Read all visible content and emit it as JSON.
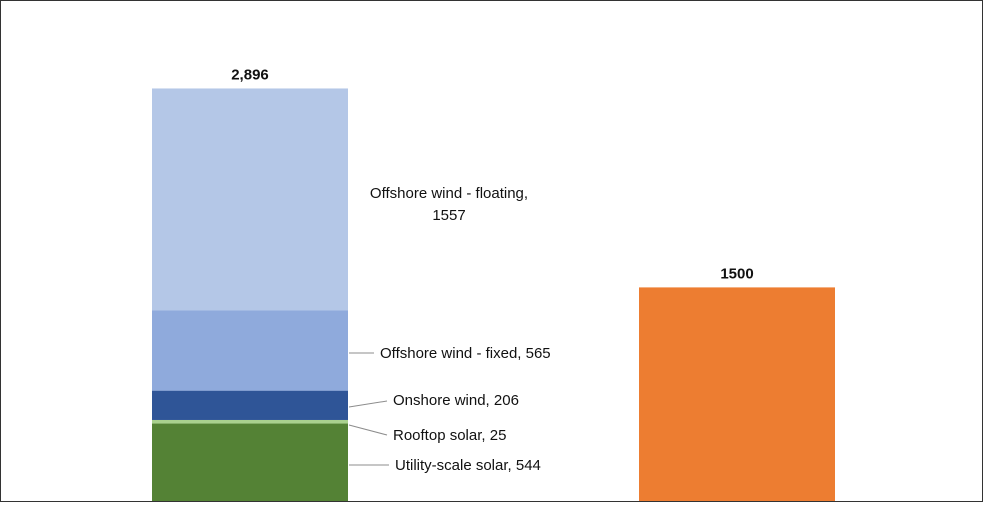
{
  "chart_data": {
    "type": "bar",
    "stacked": true,
    "categories": [
      "",
      ""
    ],
    "bars": [
      {
        "total_label": "2,896",
        "segments": [
          {
            "name": "Utility-scale solar",
            "value": 544,
            "label": "Utility-scale solar, 544",
            "color": "#548235"
          },
          {
            "name": "Rooftop solar",
            "value": 25,
            "label": "Rooftop solar, 25",
            "color": "#a9d18e"
          },
          {
            "name": "Onshore wind",
            "value": 206,
            "label": "Onshore wind, 206",
            "color": "#2f5597"
          },
          {
            "name": "Offshore wind - fixed",
            "value": 565,
            "label": "Offshore wind - fixed, 565",
            "color": "#8faadc"
          },
          {
            "name": "Offshore wind - floating",
            "value": 1557,
            "label_lines": [
              "Offshore wind - floating,",
              "1557"
            ],
            "color": "#b4c7e7"
          }
        ]
      },
      {
        "total_label": "1500",
        "segments": [
          {
            "value": 1500,
            "color": "#ed7d31"
          }
        ]
      }
    ],
    "title": "",
    "xlabel": "",
    "ylabel": "",
    "ylim": [
      0,
      3000
    ],
    "grid": false,
    "legend": "none"
  }
}
